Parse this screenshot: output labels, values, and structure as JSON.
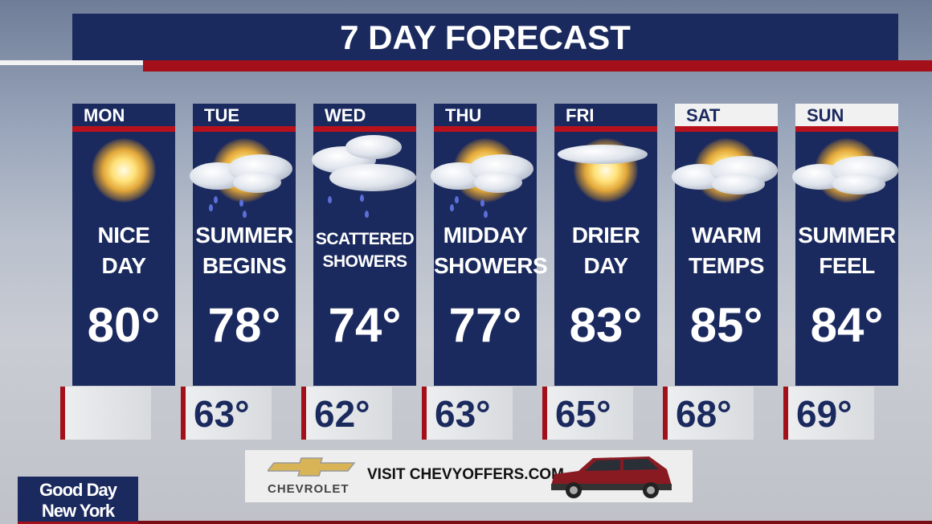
{
  "title": "7 DAY FORECAST",
  "days": [
    {
      "day": "MON",
      "desc": [
        "NICE",
        "DAY"
      ],
      "high": "80°",
      "low": "",
      "icon": "sunny-icon"
    },
    {
      "day": "TUE",
      "desc": [
        "SUMMER",
        "BEGINS"
      ],
      "high": "78°",
      "low": "63°",
      "icon": "partly-cloudy-showers-icon"
    },
    {
      "day": "WED",
      "desc": [
        "SCATTERED",
        "SHOWERS"
      ],
      "high": "74°",
      "low": "62°",
      "icon": "cloudy-showers-icon"
    },
    {
      "day": "THU",
      "desc": [
        "MIDDAY",
        "SHOWERS"
      ],
      "high": "77°",
      "low": "63°",
      "icon": "partly-cloudy-showers-icon"
    },
    {
      "day": "FRI",
      "desc": [
        "DRIER",
        "DAY"
      ],
      "high": "83°",
      "low": "65°",
      "icon": "mostly-sunny-icon"
    },
    {
      "day": "SAT",
      "desc": [
        "WARM",
        "TEMPS"
      ],
      "high": "85°",
      "low": "68°",
      "icon": "partly-cloudy-icon"
    },
    {
      "day": "SUN",
      "desc": [
        "SUMMER",
        "FEEL"
      ],
      "high": "84°",
      "low": "69°",
      "icon": "partly-cloudy-icon"
    }
  ],
  "ad": {
    "brand": "CHEVROLET",
    "text": "VISIT CHEVYOFFERS.COM"
  },
  "show_logo": {
    "line1": "Good Day",
    "line2": "New York"
  },
  "colors": {
    "navy": "#1b2a5e",
    "red": "#a3101a"
  }
}
